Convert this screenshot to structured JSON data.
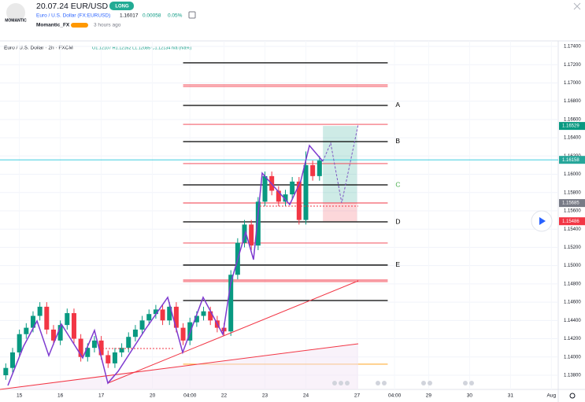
{
  "header": {
    "logo": "MOMANTIC",
    "title": "20.07.24 EUR/USD",
    "badge": "LONG",
    "symbol": "Euro / U.S. Dollar (FX:EURUSD)",
    "price": "1.16017",
    "change": "0.00058",
    "change_pct": "0.05%",
    "author": "Momantic_FX",
    "time": "3 hours ago"
  },
  "chart_data": {
    "type": "candlestick",
    "legend_title": "Euro / U.S. Dollar · 2h · FXCM",
    "legend_ohlc": "O1.12107 H1.12162 L1.12085 C1.12134 n/a (n/a%)",
    "x": [
      1,
      3,
      5,
      7,
      9,
      11,
      13,
      15,
      17,
      19,
      21,
      23,
      25,
      27,
      29,
      31,
      33,
      35,
      37,
      39,
      41,
      43,
      45,
      47,
      49,
      51,
      53,
      55,
      57,
      59,
      61,
      63,
      65,
      67,
      69,
      71,
      73,
      75,
      77,
      79,
      81,
      83,
      85,
      87,
      89,
      91,
      93
    ],
    "open": [
      1.138,
      1.1388,
      1.1405,
      1.1425,
      1.1432,
      1.1445,
      1.1455,
      1.143,
      1.1418,
      1.1435,
      1.1448,
      1.142,
      1.14,
      1.141,
      1.1418,
      1.1402,
      1.1393,
      1.1405,
      1.141,
      1.1422,
      1.143,
      1.144,
      1.1447,
      1.1452,
      1.144,
      1.1455,
      1.1432,
      1.1418,
      1.1438,
      1.1445,
      1.145,
      1.144,
      1.1432,
      1.1428,
      1.149,
      1.1525,
      1.1545,
      1.1522,
      1.157,
      1.1598,
      1.1582,
      1.157,
      1.1578,
      1.1592,
      1.155,
      1.161,
      1.1598
    ],
    "high": [
      1.1393,
      1.141,
      1.143,
      1.1437,
      1.145,
      1.146,
      1.146,
      1.1435,
      1.144,
      1.1453,
      1.1453,
      1.1425,
      1.1415,
      1.1423,
      1.1423,
      1.1407,
      1.141,
      1.1415,
      1.1427,
      1.1435,
      1.1445,
      1.1452,
      1.1457,
      1.1457,
      1.146,
      1.146,
      1.1437,
      1.1443,
      1.145,
      1.1455,
      1.1455,
      1.1445,
      1.1437,
      1.1495,
      1.153,
      1.155,
      1.155,
      1.1575,
      1.1603,
      1.1603,
      1.1587,
      1.1583,
      1.1597,
      1.1597,
      1.1625,
      1.1615,
      1.162
    ],
    "low": [
      1.1375,
      1.1383,
      1.14,
      1.142,
      1.1427,
      1.144,
      1.1425,
      1.1413,
      1.1413,
      1.143,
      1.1415,
      1.1395,
      1.1395,
      1.1405,
      1.1397,
      1.1388,
      1.1388,
      1.14,
      1.1405,
      1.1417,
      1.1425,
      1.1435,
      1.1442,
      1.1435,
      1.1435,
      1.1427,
      1.1413,
      1.1413,
      1.1433,
      1.144,
      1.1435,
      1.1427,
      1.1423,
      1.1423,
      1.1485,
      1.152,
      1.1517,
      1.1517,
      1.1565,
      1.1577,
      1.1565,
      1.1565,
      1.1573,
      1.1545,
      1.1545,
      1.1593,
      1.1593
    ],
    "close": [
      1.1388,
      1.1405,
      1.1425,
      1.1432,
      1.1445,
      1.1455,
      1.143,
      1.1418,
      1.1435,
      1.1448,
      1.142,
      1.14,
      1.141,
      1.1418,
      1.1402,
      1.1393,
      1.1405,
      1.141,
      1.1422,
      1.143,
      1.144,
      1.1447,
      1.1452,
      1.144,
      1.1455,
      1.1432,
      1.1418,
      1.1438,
      1.1445,
      1.145,
      1.144,
      1.1432,
      1.1428,
      1.149,
      1.1525,
      1.1545,
      1.1522,
      1.157,
      1.1598,
      1.1582,
      1.157,
      1.1578,
      1.1592,
      1.155,
      1.161,
      1.1598,
      1.1615
    ],
    "up_color": "#089981",
    "down_color": "#f23645",
    "xlim": [
      0,
      163
    ],
    "xticks": [
      {
        "value": 5,
        "label": "15"
      },
      {
        "value": 17,
        "label": "16"
      },
      {
        "value": 29,
        "label": "17"
      },
      {
        "value": 44,
        "label": "20"
      },
      {
        "value": 55,
        "label": "04:00"
      },
      {
        "value": 65,
        "label": "22"
      },
      {
        "value": 77,
        "label": "23"
      },
      {
        "value": 89,
        "label": "24"
      },
      {
        "value": 104,
        "label": "27"
      },
      {
        "value": 115,
        "label": "04:00"
      },
      {
        "value": 125,
        "label": "29"
      },
      {
        "value": 137,
        "label": "30"
      },
      {
        "value": 149,
        "label": "31"
      },
      {
        "value": 161,
        "label": "Aug"
      }
    ],
    "ylim": [
      1.13645,
      1.1746
    ],
    "yticks": [
      {
        "value": 1.138,
        "label": "1.13800"
      },
      {
        "value": 1.14,
        "label": "1.14000"
      },
      {
        "value": 1.142,
        "label": "1.14200"
      },
      {
        "value": 1.144,
        "label": "1.14400"
      },
      {
        "value": 1.146,
        "label": "1.14600"
      },
      {
        "value": 1.148,
        "label": "1.14800"
      },
      {
        "value": 1.15,
        "label": "1.15000"
      },
      {
        "value": 1.152,
        "label": "1.15200"
      },
      {
        "value": 1.154,
        "label": "1.15400"
      },
      {
        "value": 1.156,
        "label": "1.15600"
      },
      {
        "value": 1.158,
        "label": "1.15800"
      },
      {
        "value": 1.16,
        "label": "1.16000"
      },
      {
        "value": 1.162,
        "label": "1.16200"
      },
      {
        "value": 1.164,
        "label": "1.16400"
      },
      {
        "value": 1.166,
        "label": "1.16600"
      },
      {
        "value": 1.168,
        "label": "1.16800"
      },
      {
        "value": 1.17,
        "label": "1.17000"
      },
      {
        "value": 1.172,
        "label": "1.17200"
      },
      {
        "value": 1.174,
        "label": "1.17400"
      }
    ],
    "levels_x": [
      53,
      113
    ],
    "levels": [
      {
        "value": 1.1722,
        "color": "#000000"
      },
      {
        "value": 1.16978,
        "color": "#f23645"
      },
      {
        "value": 1.16961,
        "color": "#f23645"
      },
      {
        "value": 1.16754,
        "color": "#000000"
      },
      {
        "value": 1.16547,
        "color": "#f23645"
      },
      {
        "value": 1.16358,
        "color": "#000000"
      },
      {
        "value": 1.16117,
        "color": "#f23645"
      },
      {
        "value": 1.15884,
        "color": "#000000"
      },
      {
        "value": 1.15686,
        "color": "#f23645"
      },
      {
        "value": 1.15479,
        "color": "#000000"
      },
      {
        "value": 1.15247,
        "color": "#f23645"
      },
      {
        "value": 1.15006,
        "color": "#000000"
      },
      {
        "value": 1.14842,
        "color": "#f23645"
      },
      {
        "value": 1.14825,
        "color": "#f23645"
      },
      {
        "value": 1.14618,
        "color": "#000000"
      },
      {
        "value": 1.13921,
        "color": "#ff9800"
      }
    ],
    "level_labels": [
      {
        "label": "A",
        "value": 1.16754,
        "color": "#000000"
      },
      {
        "label": "B",
        "value": 1.16358,
        "color": "#000000"
      },
      {
        "label": "C",
        "value": 1.15884,
        "color": "#4caf50"
      },
      {
        "label": "D",
        "value": 1.15479,
        "color": "#000000"
      },
      {
        "label": "E",
        "value": 1.15006,
        "color": "#000000"
      }
    ],
    "current_price": 1.16158,
    "current_color": "#26c6da",
    "position": {
      "x": [
        94,
        104
      ],
      "target": 1.16529,
      "entry": 1.15685,
      "stop": 1.15486
    },
    "price_tags": [
      {
        "value": 1.16529,
        "label": "1.16529",
        "color": "#089981"
      },
      {
        "value": 1.16158,
        "label": "1.16158",
        "color": "#26a69a"
      },
      {
        "value": 1.15685,
        "label": "1.15685",
        "color": "#787b86"
      },
      {
        "value": 1.15486,
        "label": "1.15486",
        "color": "#f23645"
      }
    ]
  }
}
